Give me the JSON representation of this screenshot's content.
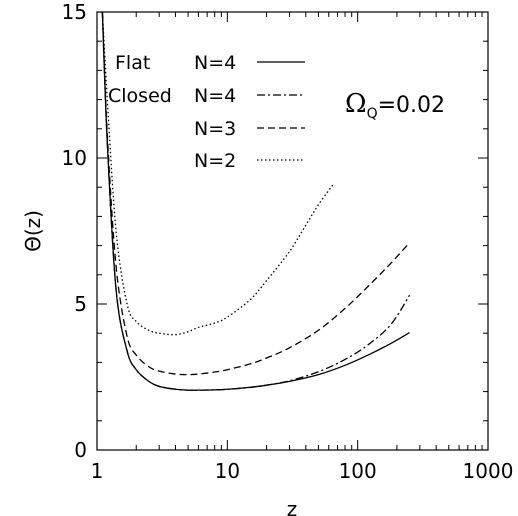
{
  "chart_data": {
    "type": "line",
    "title": "",
    "xlabel": "z",
    "ylabel": "Θ(z)",
    "x_scale": "log",
    "xlim": [
      1,
      1000
    ],
    "ylim": [
      0,
      15
    ],
    "x_tick_values": [
      1,
      10,
      100,
      1000
    ],
    "x_tick_labels": [
      "1",
      "10",
      "100",
      "1000"
    ],
    "y_tick_values": [
      0,
      5,
      10,
      15
    ],
    "y_tick_labels": [
      "0",
      "5",
      "10",
      "15"
    ],
    "annotation": {
      "omega": "Ω",
      "sub": "Q",
      "value": "=0.02"
    },
    "legend_placement": "top-left",
    "series": [
      {
        "name": "N=4",
        "group": "Flat",
        "dash": "solid",
        "x": [
          1.1,
          1.2,
          1.4,
          1.7,
          2,
          2.5,
          3,
          4,
          5,
          6,
          8,
          10,
          15,
          20,
          30,
          50,
          80,
          120,
          180,
          250
        ],
        "y": [
          15,
          10.5,
          5.5,
          3.4,
          2.75,
          2.35,
          2.18,
          2.08,
          2.05,
          2.05,
          2.06,
          2.08,
          2.15,
          2.22,
          2.35,
          2.58,
          2.9,
          3.25,
          3.65,
          4.02
        ]
      },
      {
        "name": "N=4",
        "group": "Closed",
        "dash": "dashdot",
        "x": [
          1.1,
          1.2,
          1.4,
          1.7,
          2,
          2.5,
          3,
          4,
          5,
          6,
          8,
          10,
          15,
          20,
          30,
          50,
          80,
          120,
          180,
          250
        ],
        "y": [
          15,
          10.5,
          5.5,
          3.4,
          2.75,
          2.35,
          2.18,
          2.08,
          2.05,
          2.05,
          2.06,
          2.08,
          2.14,
          2.22,
          2.37,
          2.68,
          3.1,
          3.6,
          4.3,
          5.3
        ]
      },
      {
        "name": "N=3",
        "group": "Closed",
        "dash": "dashed",
        "x": [
          1.1,
          1.2,
          1.4,
          1.7,
          2,
          2.5,
          3,
          4,
          5,
          6,
          8,
          10,
          15,
          20,
          30,
          50,
          80,
          120,
          180,
          250
        ],
        "y": [
          15,
          10.8,
          6.3,
          3.9,
          3.25,
          2.85,
          2.7,
          2.6,
          2.58,
          2.6,
          2.67,
          2.75,
          2.95,
          3.15,
          3.5,
          4.1,
          4.85,
          5.6,
          6.4,
          7.1
        ]
      },
      {
        "name": "N=2",
        "group": "Closed",
        "dash": "dotted",
        "x": [
          1.1,
          1.2,
          1.4,
          1.7,
          2,
          2.5,
          3,
          4,
          5,
          6,
          8,
          10,
          15,
          20,
          30,
          40,
          50,
          65
        ],
        "y": [
          15,
          12.0,
          7.5,
          5.0,
          4.4,
          4.1,
          4.0,
          3.95,
          4.05,
          4.2,
          4.35,
          4.55,
          5.15,
          5.8,
          6.8,
          7.7,
          8.4,
          9.1
        ]
      }
    ]
  }
}
